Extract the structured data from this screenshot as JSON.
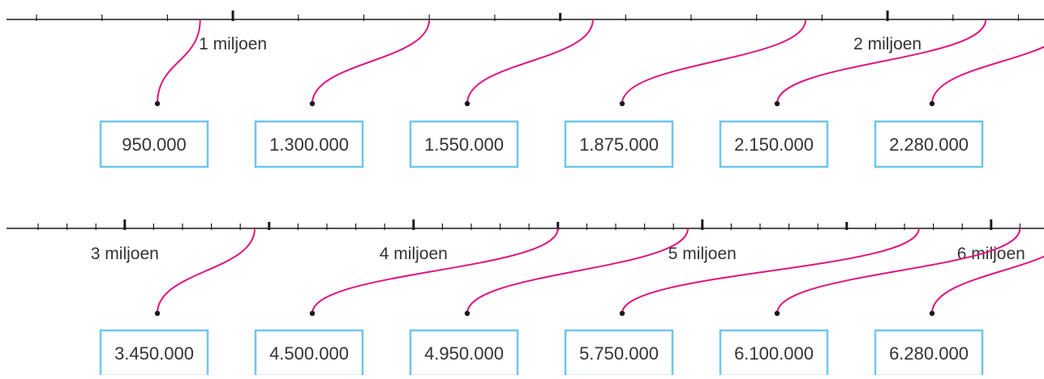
{
  "colors": {
    "line": "#1a1a1a",
    "connector": "#e0147f",
    "box_border": "#6ec6ea",
    "text": "#333333"
  },
  "rows": [
    {
      "axis": {
        "min": 700000,
        "max": 2300000,
        "step": 100000,
        "labels": [
          {
            "value": 1000000,
            "text": "1 miljoen"
          },
          {
            "value": 2000000,
            "text": "2 miljoen"
          }
        ]
      },
      "boxes": [
        {
          "value": 950000,
          "text": "950.000"
        },
        {
          "value": 1300000,
          "text": "1.300.000"
        },
        {
          "value": 1550000,
          "text": "1.550.000"
        },
        {
          "value": 1875000,
          "text": "1.875.000"
        },
        {
          "value": 2150000,
          "text": "2.150.000"
        },
        {
          "value": 2280000,
          "text": "2.280.000"
        }
      ]
    },
    {
      "axis": {
        "min": 2700000,
        "max": 6500000,
        "step": 200000,
        "labels": [
          {
            "value": 3000000,
            "text": "3 miljoen"
          },
          {
            "value": 4000000,
            "text": "4 miljoen"
          },
          {
            "value": 5000000,
            "text": "5 miljoen"
          },
          {
            "value": 6000000,
            "text": "6 miljoen"
          }
        ]
      },
      "boxes": [
        {
          "value": 3450000,
          "text": "3.450.000"
        },
        {
          "value": 4500000,
          "text": "4.500.000"
        },
        {
          "value": 4950000,
          "text": "4.950.000"
        },
        {
          "value": 5750000,
          "text": "5.750.000"
        },
        {
          "value": 6100000,
          "text": "6.100.000"
        },
        {
          "value": 6280000,
          "text": "6.280.000"
        }
      ]
    }
  ]
}
